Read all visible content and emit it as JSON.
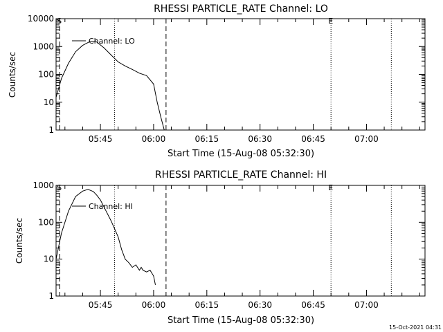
{
  "footer": {
    "timestamp": "15-Oct-2021 04:31"
  },
  "chart_data": [
    {
      "type": "line",
      "title": "RHESSI PARTICLE_RATE Channel: LO",
      "xlabel": "Start Time (15-Aug-08 05:32:30)",
      "ylabel": "Counts/sec",
      "yscale": "log",
      "xlim": [
        "05:32:30",
        "07:16:30"
      ],
      "ylim": [
        1,
        10000
      ],
      "x_ticks": [
        "05:45",
        "06:00",
        "06:15",
        "06:30",
        "06:45",
        "07:00"
      ],
      "y_ticks": [
        "1",
        "10",
        "100",
        "1000",
        "10000"
      ],
      "legend": {
        "label": "Channel: LO",
        "position": "top-left"
      },
      "markers": [
        {
          "label": "S",
          "time": "05:33:30",
          "style": "dashed"
        },
        {
          "label": "",
          "time": "05:49:00",
          "style": "dotted"
        },
        {
          "label": "",
          "time": "06:03:30",
          "style": "dashed"
        },
        {
          "label": "E",
          "time": "06:50:00",
          "style": "dotted"
        },
        {
          "label": "",
          "time": "07:07:00",
          "style": "dotted"
        }
      ],
      "series": [
        {
          "name": "Channel: LO",
          "x": [
            "05:32:30",
            "05:34:00",
            "05:36:00",
            "05:38:00",
            "05:40:00",
            "05:42:00",
            "05:43:00",
            "05:44:00",
            "05:46:00",
            "05:48:00",
            "05:50:00",
            "05:52:00",
            "05:54:00",
            "05:56:00",
            "05:58:00",
            "06:00:00",
            "06:01:00",
            "06:02:00",
            "06:03:00"
          ],
          "y": [
            15,
            70,
            250,
            650,
            1100,
            1500,
            1550,
            1450,
            900,
            500,
            280,
            200,
            150,
            110,
            90,
            45,
            10,
            3,
            1
          ]
        }
      ]
    },
    {
      "type": "line",
      "title": "RHESSI PARTICLE_RATE Channel: HI",
      "xlabel": "Start Time (15-Aug-08 05:32:30)",
      "ylabel": "Counts/sec",
      "yscale": "log",
      "xlim": [
        "05:32:30",
        "07:16:30"
      ],
      "ylim": [
        1,
        1000
      ],
      "x_ticks": [
        "05:45",
        "06:00",
        "06:15",
        "06:30",
        "06:45",
        "07:00"
      ],
      "y_ticks": [
        "1",
        "10",
        "100",
        "1000"
      ],
      "legend": {
        "label": "Channel: HI",
        "position": "top-left"
      },
      "markers": [
        {
          "label": "S",
          "time": "05:33:30",
          "style": "dashed"
        },
        {
          "label": "",
          "time": "05:49:00",
          "style": "dotted"
        },
        {
          "label": "",
          "time": "06:03:30",
          "style": "dashed"
        },
        {
          "label": "E",
          "time": "06:50:00",
          "style": "dotted"
        },
        {
          "label": "",
          "time": "07:07:00",
          "style": "dotted"
        }
      ],
      "series": [
        {
          "name": "Channel: HI",
          "x": [
            "05:32:30",
            "05:34:00",
            "05:36:00",
            "05:38:00",
            "05:40:00",
            "05:41:30",
            "05:43:00",
            "05:44:00",
            "05:45:00",
            "05:46:00",
            "05:48:00",
            "05:50:00",
            "05:51:00",
            "05:52:00",
            "05:53:00",
            "05:54:00",
            "05:55:00",
            "05:56:00",
            "05:56:30",
            "05:57:00",
            "05:58:00",
            "05:59:00",
            "06:00:00",
            "06:00:30"
          ],
          "y": [
            10,
            50,
            200,
            500,
            700,
            780,
            680,
            540,
            400,
            260,
            110,
            40,
            18,
            10,
            8,
            6,
            7,
            5,
            6,
            5,
            4.5,
            5,
            3.5,
            2
          ]
        }
      ]
    }
  ]
}
